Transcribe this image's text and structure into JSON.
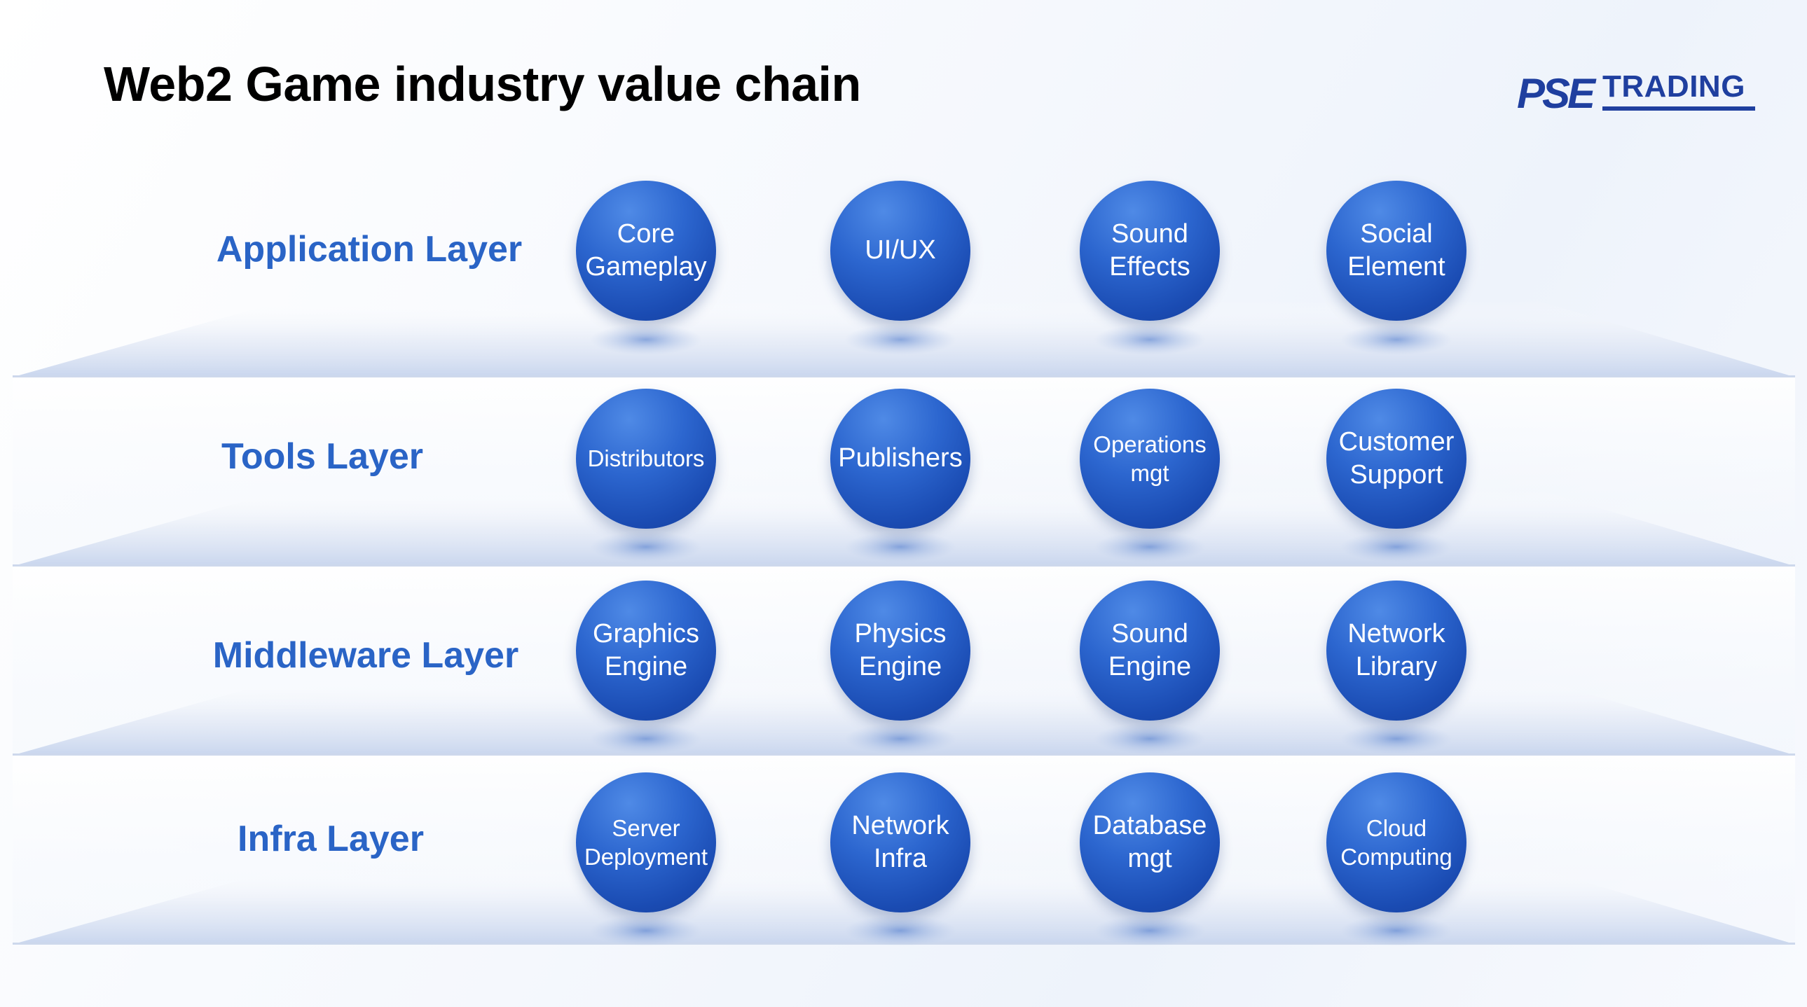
{
  "title": "Web2 Game industry value chain",
  "logo": {
    "mark": "PSE",
    "word": "TRADING"
  },
  "colors": {
    "label": "#2a64c6",
    "node": "#1f55c0",
    "logo": "#1f3f9f"
  },
  "layers": [
    {
      "label": "Application Layer",
      "nodes": [
        "Core\nGameplay",
        "UI/UX",
        "Sound\nEffects",
        "Social\nElement"
      ]
    },
    {
      "label": "Tools Layer",
      "nodes": [
        "Distributors",
        "Publishers",
        "Operations\nmgt",
        "Customer\nSupport"
      ]
    },
    {
      "label": "Middleware Layer",
      "nodes": [
        "Graphics\nEngine",
        "Physics\nEngine",
        "Sound\nEngine",
        "Network\nLibrary"
      ]
    },
    {
      "label": "Infra Layer",
      "nodes": [
        "Server\nDeployment",
        "Network\nInfra",
        "Database\nmgt",
        "Cloud\nComputing"
      ]
    }
  ]
}
